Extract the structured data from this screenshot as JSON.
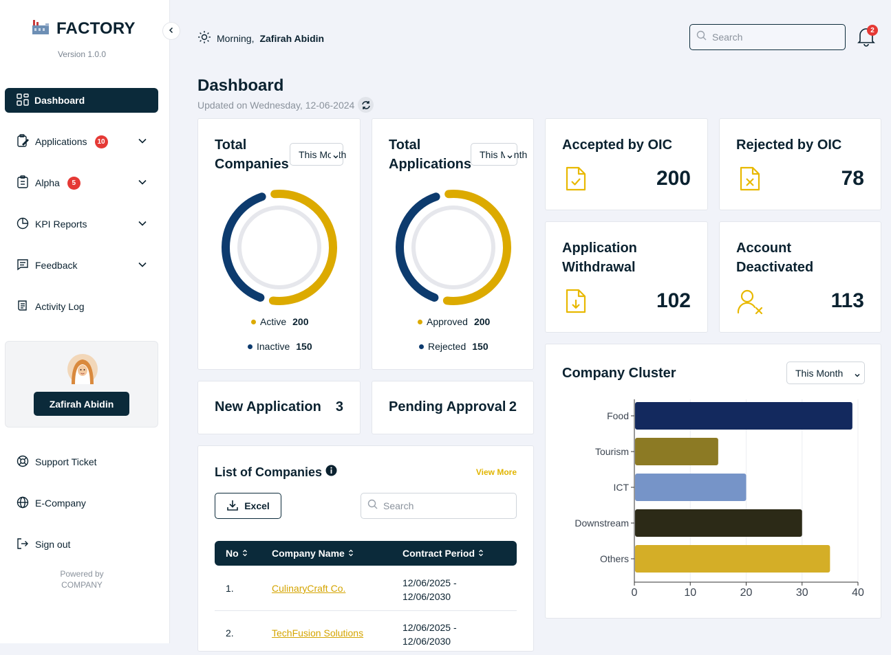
{
  "app": {
    "name": "FACTORY",
    "version": "Version 1.0.0",
    "powered_line1": "Powered by",
    "powered_line2": "COMPANY"
  },
  "nav": {
    "active": "Dashboard",
    "items": [
      {
        "label": "Applications",
        "badge": "10"
      },
      {
        "label": "Alpha",
        "badge": "5"
      },
      {
        "label": "KPI Reports"
      },
      {
        "label": "Feedback"
      },
      {
        "label": "Activity Log"
      }
    ],
    "bottom": [
      "Support Ticket",
      "E-Company",
      "Sign out"
    ]
  },
  "user": {
    "name": "Zafirah Abidin",
    "greeting": "Morning,"
  },
  "topbar": {
    "search_placeholder": "Search",
    "notifications": "2"
  },
  "page": {
    "title": "Dashboard",
    "updated": "Updated on Wednesday, 12-06-2024"
  },
  "colors": {
    "primary": "#0b2a3a",
    "navy_ring": "#0d3b6e",
    "gold": "#dcaa00",
    "danger": "#e53935"
  },
  "total_companies": {
    "title_line1": "Total",
    "title_line2": "Companies",
    "period": "This Month",
    "legend": [
      {
        "label": "Active",
        "value": "200"
      },
      {
        "label": "Inactive",
        "value": "150"
      }
    ]
  },
  "total_applications": {
    "title_line1": "Total",
    "title_line2": "Applications",
    "period": "This Month",
    "legend": [
      {
        "label": "Approved",
        "value": "200"
      },
      {
        "label": "Rejected",
        "value": "150"
      }
    ]
  },
  "stats": {
    "accepted": {
      "label": "Accepted by OIC",
      "value": "200"
    },
    "rejected": {
      "label": "Rejected by OIC",
      "value": "78"
    },
    "withdrawal": {
      "line1": "Application",
      "line2": "Withdrawal",
      "value": "102"
    },
    "deactivated": {
      "line1": "Account",
      "line2": "Deactivated",
      "value": "113"
    }
  },
  "new_application": {
    "label": "New Application",
    "value": "3"
  },
  "pending_approval": {
    "label": "Pending Approval",
    "value": "2"
  },
  "companies_list": {
    "title": "List of Companies",
    "view_more": "View More",
    "excel": "Excel",
    "search_placeholder": "Search",
    "columns": [
      "No",
      "Company Name",
      "Contract Period"
    ],
    "rows": [
      {
        "no": "1.",
        "name": "CulinaryCraft Co.",
        "period_start": "12/06/2025 -",
        "period_end": "12/06/2030"
      },
      {
        "no": "2.",
        "name": "TechFusion Solutions",
        "period_start": "12/06/2025 -",
        "period_end": "12/06/2030"
      }
    ]
  },
  "cluster": {
    "title": "Company Cluster",
    "period": "This Month"
  },
  "chart_data": [
    {
      "type": "pie",
      "title": "Total Companies",
      "categories": [
        "Active",
        "Inactive"
      ],
      "values": [
        200,
        150
      ],
      "colors": [
        "#dcaa00",
        "#0d3b6e"
      ]
    },
    {
      "type": "pie",
      "title": "Total Applications",
      "categories": [
        "Approved",
        "Rejected"
      ],
      "values": [
        200,
        150
      ],
      "colors": [
        "#dcaa00",
        "#0d3b6e"
      ]
    },
    {
      "type": "bar",
      "orientation": "horizontal",
      "title": "Company Cluster",
      "categories": [
        "Food",
        "Tourism",
        "ICT",
        "Downstream",
        "Others"
      ],
      "values": [
        39,
        15,
        20,
        30,
        35
      ],
      "colors": [
        "#13295e",
        "#8c7a24",
        "#7694c8",
        "#2c2a17",
        "#d4ae27"
      ],
      "xlim": [
        0,
        40
      ],
      "xticks": [
        "0",
        "10",
        "20",
        "30",
        "40"
      ]
    }
  ]
}
